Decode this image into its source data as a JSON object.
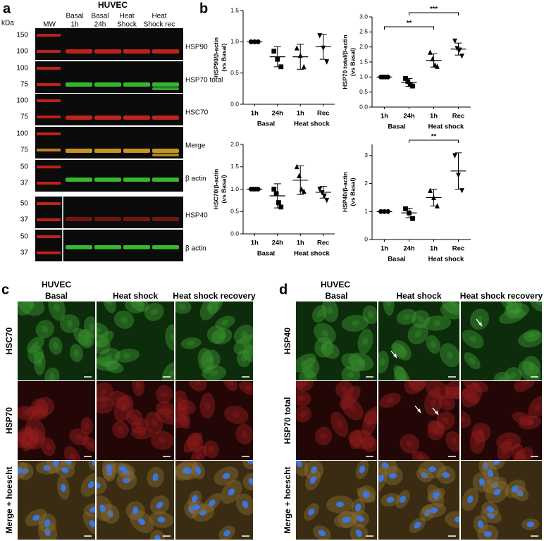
{
  "panel_a": {
    "letter": "a",
    "title": "HUVEC",
    "unit": "kDa",
    "lanes": [
      [
        "MW"
      ],
      [
        "Basal",
        "1h"
      ],
      [
        "Basal",
        "24h"
      ],
      [
        "Heat",
        "Shock"
      ],
      [
        "Heat",
        "Shock rec"
      ]
    ],
    "rows": [
      {
        "label": "HSP90",
        "markers": [
          150,
          100
        ]
      },
      {
        "label": "HSP70 total",
        "markers": [
          100,
          75
        ]
      },
      {
        "label": "HSC70",
        "markers": [
          100,
          75
        ]
      },
      {
        "label": "Merge",
        "markers": [
          100,
          75
        ]
      },
      {
        "label": "β actin",
        "markers": [
          50,
          37
        ]
      },
      {
        "label": "HSP40",
        "markers": [
          50,
          37
        ]
      },
      {
        "label": "β actin",
        "markers": [
          50,
          37
        ]
      }
    ]
  },
  "panel_b": {
    "letter": "b"
  },
  "chart_data": [
    {
      "type": "dot",
      "y_label": [
        "HSP90/β-actin",
        "(vs Basal)"
      ],
      "categories": [
        "1h",
        "24h",
        "1h",
        "Rec"
      ],
      "group_labels": [
        "Basal",
        "Heat shock"
      ],
      "points": [
        [
          1,
          1,
          1
        ],
        [
          0.85,
          0.72,
          0.6
        ],
        [
          0.9,
          0.78,
          0.6
        ],
        [
          1.1,
          0.9,
          0.68
        ]
      ],
      "means": [
        1,
        0.76,
        0.76,
        0.92
      ],
      "sd": [
        0,
        0.16,
        0.2,
        0.2
      ],
      "color": "#000000",
      "markers": [
        "circle",
        "square",
        "triangle",
        "triangle-down"
      ],
      "ylim": [
        0,
        1.5
      ],
      "yticks": [
        {
          "value": 0,
          "label": "0.0"
        },
        {
          "value": 0.5,
          "label": "0.5"
        },
        {
          "value": 1,
          "label": "1.0"
        },
        {
          "value": 1.5,
          "label": "1.5"
        }
      ],
      "significance": []
    },
    {
      "type": "dot",
      "y_label": [
        "HSP70 total/β-actin",
        "(vs Basal)"
      ],
      "categories": [
        "1h",
        "24h",
        "1h",
        "Rec"
      ],
      "group_labels": [
        "Basal",
        "Heat shock"
      ],
      "points": [
        [
          1,
          1,
          1,
          1
        ],
        [
          0.95,
          0.85,
          0.75,
          0.7
        ],
        [
          1.82,
          1.6,
          1.4,
          1.35
        ],
        [
          2.2,
          1.95,
          1.9,
          1.7
        ]
      ],
      "means": [
        1,
        0.82,
        1.55,
        1.93
      ],
      "sd": [
        0,
        0.13,
        0.22,
        0.2
      ],
      "color": "#000000",
      "markers": [
        "circle",
        "square",
        "triangle",
        "triangle-down"
      ],
      "ylim": [
        0,
        3
      ],
      "yticks": [
        {
          "value": 0,
          "label": "0.0"
        },
        {
          "value": 0.5,
          "label": "0.5"
        },
        {
          "value": 1,
          "label": "1.0"
        },
        {
          "value": 1.5,
          "label": "1.5"
        },
        {
          "value": 2,
          "label": "2.0"
        },
        {
          "value": 2.5,
          "label": "2.5"
        },
        {
          "value": 3,
          "label": "3.0"
        }
      ],
      "significance": [
        {
          "label": "**",
          "from": 0,
          "to": 2
        },
        {
          "label": "***",
          "from": 1,
          "to": 3
        }
      ]
    },
    {
      "type": "dot",
      "y_label": [
        "HSC70/β-actin",
        "(vs Basal)"
      ],
      "categories": [
        "1h",
        "24h",
        "1h",
        "Rec"
      ],
      "group_labels": [
        "Basal",
        "Heat shock"
      ],
      "points": [
        [
          1,
          1,
          1,
          1
        ],
        [
          1,
          0.9,
          0.7,
          0.6
        ],
        [
          1.5,
          1.3,
          1,
          0.95
        ],
        [
          1,
          0.92,
          0.85,
          0.75
        ]
      ],
      "means": [
        1,
        0.85,
        1.2,
        0.93
      ],
      "sd": [
        0,
        0.27,
        0.32,
        0.13
      ],
      "color": "#000000",
      "markers": [
        "circle",
        "square",
        "triangle",
        "triangle-down"
      ],
      "ylim": [
        0,
        2
      ],
      "yticks": [
        {
          "value": 0,
          "label": "0.0"
        },
        {
          "value": 0.5,
          "label": "0.5"
        },
        {
          "value": 1,
          "label": "1.0"
        },
        {
          "value": 1.5,
          "label": "1.5"
        },
        {
          "value": 2,
          "label": "2.0"
        }
      ],
      "significance": []
    },
    {
      "type": "dot",
      "y_label": [
        "HSP40/β-actin",
        "(vs Basal)"
      ],
      "categories": [
        "1h",
        "24h",
        "1h",
        "Rec"
      ],
      "group_labels": [
        "Basal",
        "Heat shock"
      ],
      "points": [
        [
          1,
          1,
          1
        ],
        [
          1.1,
          0.95,
          0.75
        ],
        [
          1.75,
          1.5,
          1.2
        ],
        [
          3,
          2.3,
          1.75
        ]
      ],
      "means": [
        1,
        0.95,
        1.5,
        2.45
      ],
      "sd": [
        0,
        0.17,
        0.3,
        0.65
      ],
      "color": "#000000",
      "markers": [
        "circle",
        "square",
        "triangle",
        "triangle-down"
      ],
      "ylim": [
        0,
        3.4
      ],
      "yticks": [
        0,
        1,
        2,
        3
      ],
      "significance": [
        {
          "label": "**",
          "from": 1,
          "to": 3
        }
      ]
    }
  ],
  "panel_c": {
    "letter": "c",
    "cell_line": "HUVEC",
    "columns": [
      "Basal",
      "Heat shock",
      "Heat shock recovery"
    ],
    "rows": [
      "HSC70",
      "HSP70",
      "Merge + hoescht"
    ]
  },
  "panel_d": {
    "letter": "d",
    "cell_line": "HUVEC",
    "columns": [
      "Basal",
      "Heat shock",
      "Heat shock recovery"
    ],
    "rows": [
      "HSP40",
      "HSP70 total",
      "Merge + hoescht"
    ]
  }
}
